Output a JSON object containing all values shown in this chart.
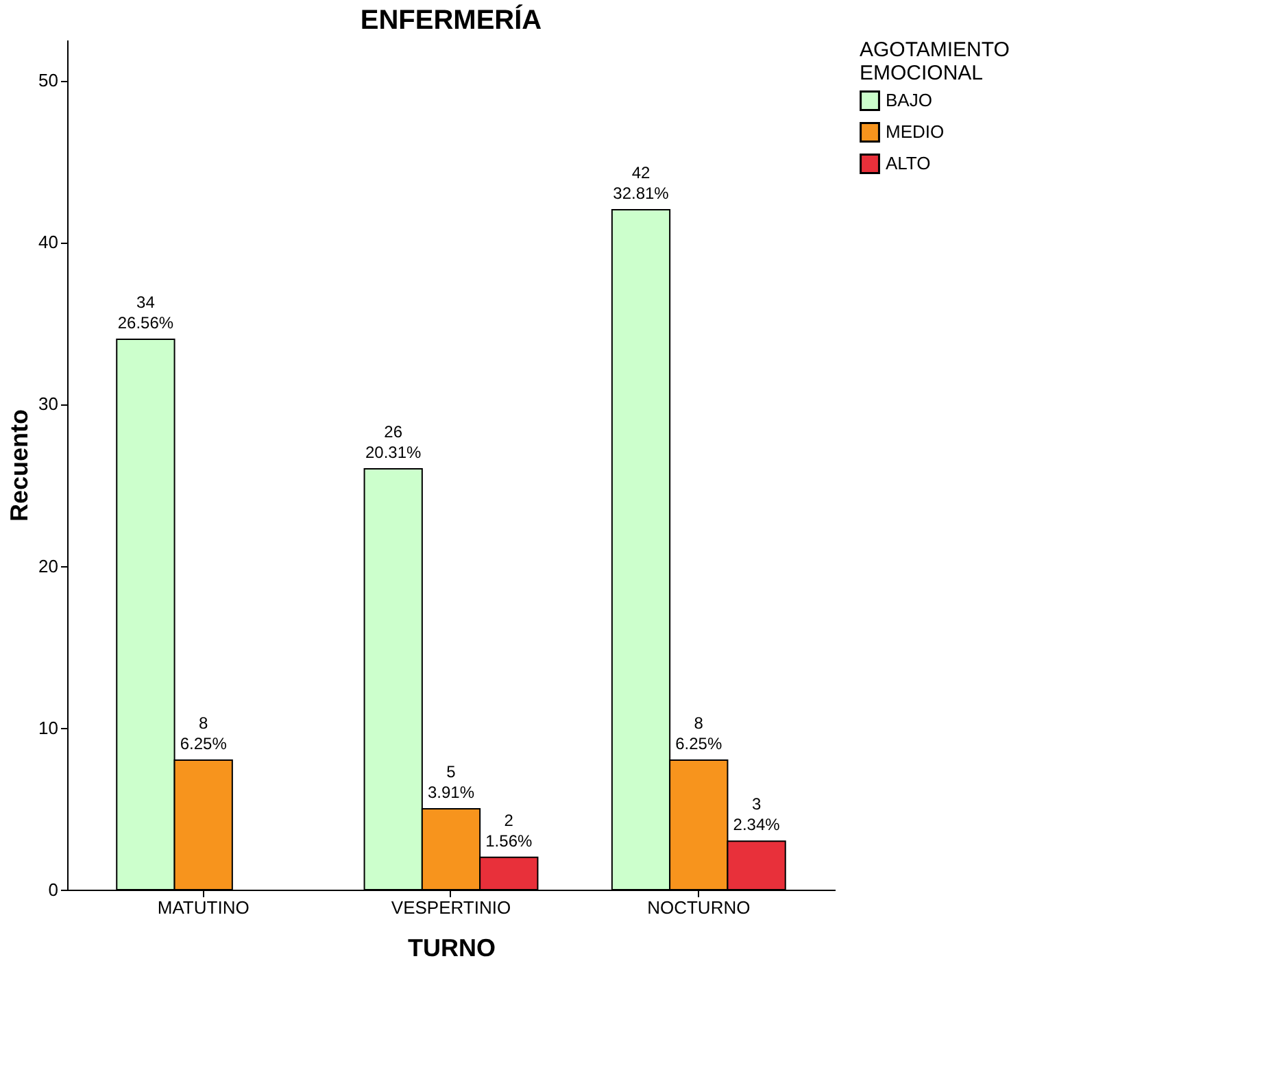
{
  "chart_data": {
    "type": "bar",
    "title": "ENFERMERÍA",
    "xlabel": "TURNO",
    "ylabel": "Recuento",
    "legend_title": "AGOTAMIENTO\nEMOCIONAL",
    "categories": [
      "MATUTINO",
      "VESPERTINIO",
      "NOCTURNO"
    ],
    "series": [
      {
        "name": "BAJO",
        "color": "#ccffcc",
        "values": [
          34,
          26,
          42
        ],
        "value_labels": [
          "34\n26.56%",
          "26\n20.31%",
          "42\n32.81%"
        ]
      },
      {
        "name": "MEDIO",
        "color": "#f7941d",
        "values": [
          8,
          5,
          8
        ],
        "value_labels": [
          "8\n6.25%",
          "5\n3.91%",
          "8\n6.25%"
        ]
      },
      {
        "name": "ALTO",
        "color": "#e8303a",
        "values": [
          null,
          2,
          3
        ],
        "value_labels": [
          null,
          "2\n1.56%",
          "3\n2.34%"
        ]
      }
    ],
    "ylim": [
      0,
      52.5
    ],
    "yticks": [
      0,
      10,
      20,
      30,
      40,
      50
    ],
    "grid": false,
    "legend": "top right"
  }
}
